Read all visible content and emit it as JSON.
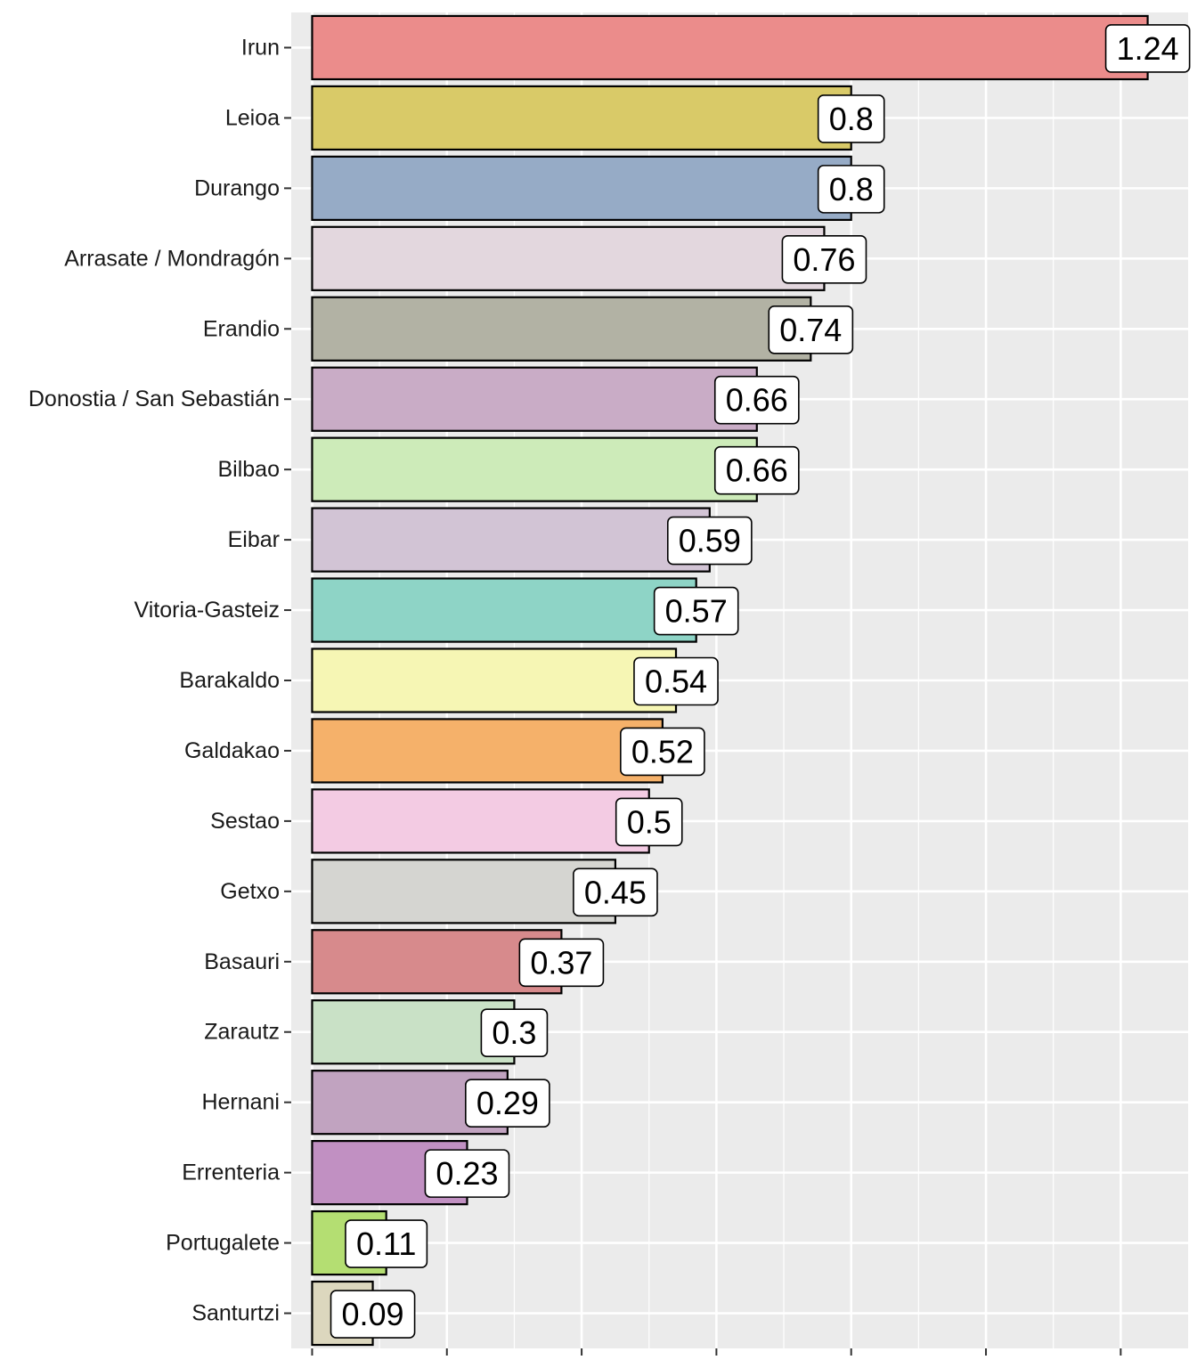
{
  "chart_data": {
    "type": "bar",
    "orientation": "horizontal",
    "title": "",
    "xlabel": "",
    "ylabel": "",
    "xlim": [
      -0.031,
      1.3
    ],
    "x_gridlines": [
      0,
      0.2,
      0.4,
      0.6,
      0.8,
      1.0,
      1.2
    ],
    "categories": [
      "Irun",
      "Leioa",
      "Durango",
      "Arrasate / Mondragón",
      "Erandio",
      "Donostia / San Sebastián",
      "Bilbao",
      "Eibar",
      "Vitoria-Gasteiz",
      "Barakaldo",
      "Galdakao",
      "Sestao",
      "Getxo",
      "Basauri",
      "Zarautz",
      "Hernani",
      "Errenteria",
      "Portugalete",
      "Santurtzi"
    ],
    "values": [
      1.24,
      0.8,
      0.8,
      0.76,
      0.74,
      0.66,
      0.66,
      0.59,
      0.57,
      0.54,
      0.52,
      0.5,
      0.45,
      0.37,
      0.3,
      0.29,
      0.23,
      0.11,
      0.09
    ],
    "labels": [
      "1.24",
      "0.8",
      "0.8",
      "0.76",
      "0.74",
      "0.66",
      "0.66",
      "0.59",
      "0.57",
      "0.54",
      "0.52",
      "0.5",
      "0.45",
      "0.37",
      "0.3",
      "0.29",
      "0.23",
      "0.11",
      "0.09"
    ],
    "colors": [
      "#EB8C8B",
      "#D9CA68",
      "#96ABC6",
      "#E3D7DE",
      "#B2B2A4",
      "#C9ACC6",
      "#CDEBB9",
      "#D2C4D5",
      "#8ED4C6",
      "#F6F6B4",
      "#F5B16A",
      "#F3CBE3",
      "#D5D5D1",
      "#D78A8C",
      "#C9E1C6",
      "#C1A3C0",
      "#C190C2",
      "#B4DE72",
      "#DCD7BE"
    ],
    "panel_background": "#EBEBEB",
    "grid_color": "#FFFFFF",
    "bar_outline": "#000000"
  }
}
